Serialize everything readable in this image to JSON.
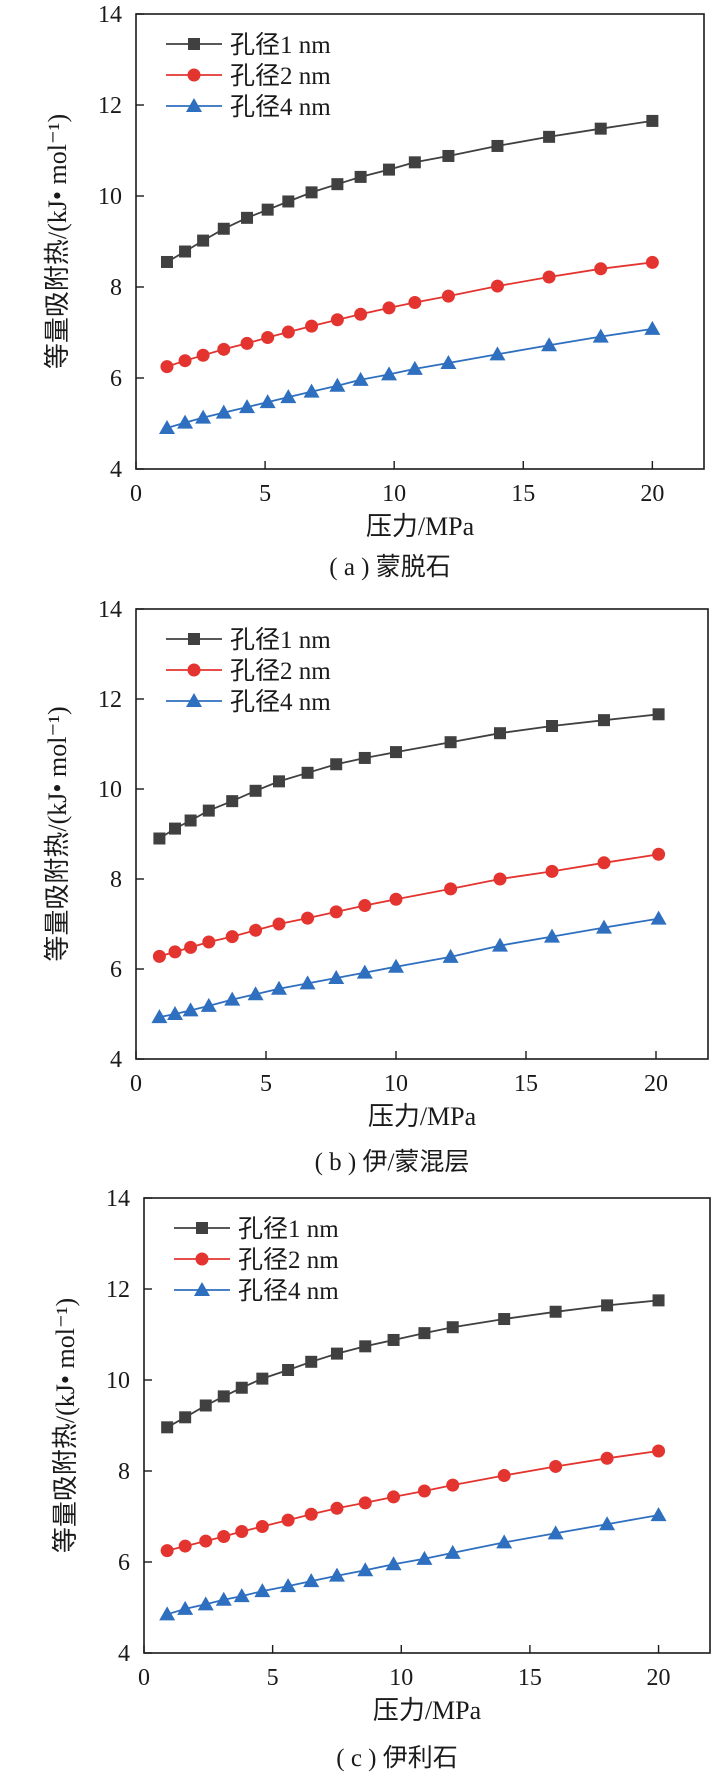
{
  "colors": {
    "series": [
      "#404040",
      "#e3342f",
      "#2f6fc0"
    ],
    "axis": "#1a1a1a",
    "background": "#ffffff"
  },
  "chart_data": [
    {
      "type": "line",
      "caption": "( a ) 蒙脱石",
      "xlabel": "压力/MPa",
      "ylabel": "等量吸附热/(kJ• mol⁻¹)",
      "xlim": [
        0,
        22
      ],
      "ylim": [
        4,
        14
      ],
      "xticks": [
        "0",
        "5",
        "10",
        "15",
        "20"
      ],
      "yticks": [
        "4",
        "6",
        "8",
        "10",
        "12",
        "14"
      ],
      "legend_position": "top-left",
      "markers": [
        "square",
        "circle",
        "triangle"
      ],
      "series": [
        {
          "name": "孔径1 nm",
          "x": [
            1.2,
            1.9,
            2.6,
            3.4,
            4.3,
            5.1,
            5.9,
            6.8,
            7.8,
            8.7,
            9.8,
            10.8,
            12.1,
            14.0,
            16.0,
            18.0,
            20.0
          ],
          "y": [
            8.55,
            8.78,
            9.02,
            9.28,
            9.52,
            9.7,
            9.88,
            10.08,
            10.26,
            10.42,
            10.58,
            10.74,
            10.88,
            11.1,
            11.3,
            11.48,
            11.65
          ]
        },
        {
          "name": "孔径2 nm",
          "x": [
            1.2,
            1.9,
            2.6,
            3.4,
            4.3,
            5.1,
            5.9,
            6.8,
            7.8,
            8.7,
            9.8,
            10.8,
            12.1,
            14.0,
            16.0,
            18.0,
            20.0
          ],
          "y": [
            6.25,
            6.38,
            6.5,
            6.63,
            6.76,
            6.89,
            7.01,
            7.14,
            7.28,
            7.4,
            7.54,
            7.66,
            7.8,
            8.02,
            8.22,
            8.4,
            8.54
          ]
        },
        {
          "name": "孔径4 nm",
          "x": [
            1.2,
            1.9,
            2.6,
            3.4,
            4.3,
            5.1,
            5.9,
            6.8,
            7.8,
            8.7,
            9.8,
            10.8,
            12.1,
            14.0,
            16.0,
            18.0,
            20.0
          ],
          "y": [
            4.9,
            5.02,
            5.13,
            5.24,
            5.36,
            5.47,
            5.58,
            5.7,
            5.83,
            5.96,
            6.08,
            6.2,
            6.33,
            6.52,
            6.72,
            6.91,
            7.08
          ]
        }
      ]
    },
    {
      "type": "line",
      "caption": "( b ) 伊/蒙混层",
      "xlabel": "压力/MPa",
      "ylabel": "等量吸附热/(kJ• mol⁻¹)",
      "xlim": [
        0,
        22
      ],
      "ylim": [
        4,
        14
      ],
      "xticks": [
        "0",
        "5",
        "10",
        "15",
        "20"
      ],
      "yticks": [
        "4",
        "6",
        "8",
        "10",
        "12",
        "14"
      ],
      "legend_position": "top-left",
      "markers": [
        "square",
        "circle",
        "triangle"
      ],
      "series": [
        {
          "name": "孔径1 nm",
          "x": [
            0.9,
            1.5,
            2.1,
            2.8,
            3.7,
            4.6,
            5.5,
            6.6,
            7.7,
            8.8,
            10.0,
            12.1,
            14.0,
            16.0,
            18.0,
            20.1
          ],
          "y": [
            8.9,
            9.12,
            9.3,
            9.52,
            9.73,
            9.96,
            10.17,
            10.36,
            10.55,
            10.69,
            10.82,
            11.04,
            11.24,
            11.4,
            11.53,
            11.66
          ]
        },
        {
          "name": "孔径2 nm",
          "x": [
            0.9,
            1.5,
            2.1,
            2.8,
            3.7,
            4.6,
            5.5,
            6.6,
            7.7,
            8.8,
            10.0,
            12.1,
            14.0,
            16.0,
            18.0,
            20.1
          ],
          "y": [
            6.28,
            6.38,
            6.48,
            6.6,
            6.72,
            6.86,
            7.0,
            7.13,
            7.27,
            7.41,
            7.55,
            7.78,
            8.0,
            8.17,
            8.36,
            8.55
          ]
        },
        {
          "name": "孔径4 nm",
          "x": [
            0.9,
            1.5,
            2.1,
            2.8,
            3.7,
            4.6,
            5.5,
            6.6,
            7.7,
            8.8,
            10.0,
            12.1,
            14.0,
            16.0,
            18.0,
            20.1
          ],
          "y": [
            4.93,
            5.0,
            5.08,
            5.18,
            5.32,
            5.44,
            5.56,
            5.68,
            5.8,
            5.92,
            6.05,
            6.27,
            6.52,
            6.72,
            6.92,
            7.12
          ]
        }
      ]
    },
    {
      "type": "line",
      "caption": "( c ) 伊利石",
      "xlabel": "压力/MPa",
      "ylabel": "等量吸附热/(kJ• mol⁻¹)",
      "xlim": [
        0,
        22
      ],
      "ylim": [
        4,
        14
      ],
      "xticks": [
        "0",
        "5",
        "10",
        "15",
        "20"
      ],
      "yticks": [
        "4",
        "6",
        "8",
        "10",
        "12",
        "14"
      ],
      "legend_position": "top-left",
      "markers": [
        "square",
        "circle",
        "triangle"
      ],
      "series": [
        {
          "name": "孔径1 nm",
          "x": [
            0.9,
            1.6,
            2.4,
            3.1,
            3.8,
            4.6,
            5.6,
            6.5,
            7.5,
            8.6,
            9.7,
            10.9,
            12.0,
            14.0,
            16.0,
            18.0,
            20.0
          ],
          "y": [
            8.96,
            9.18,
            9.44,
            9.64,
            9.83,
            10.03,
            10.22,
            10.4,
            10.58,
            10.74,
            10.88,
            11.03,
            11.16,
            11.34,
            11.5,
            11.64,
            11.75
          ]
        },
        {
          "name": "孔径2 nm",
          "x": [
            0.9,
            1.6,
            2.4,
            3.1,
            3.8,
            4.6,
            5.6,
            6.5,
            7.5,
            8.6,
            9.7,
            10.9,
            12.0,
            14.0,
            16.0,
            18.0,
            20.0
          ],
          "y": [
            6.25,
            6.35,
            6.46,
            6.56,
            6.67,
            6.78,
            6.92,
            7.05,
            7.18,
            7.3,
            7.43,
            7.56,
            7.69,
            7.9,
            8.1,
            8.28,
            8.44
          ]
        },
        {
          "name": "孔径4 nm",
          "x": [
            0.9,
            1.6,
            2.4,
            3.1,
            3.8,
            4.6,
            5.6,
            6.5,
            7.5,
            8.6,
            9.7,
            10.9,
            12.0,
            14.0,
            16.0,
            18.0,
            20.0
          ],
          "y": [
            4.85,
            4.97,
            5.07,
            5.17,
            5.25,
            5.36,
            5.47,
            5.58,
            5.7,
            5.82,
            5.95,
            6.07,
            6.2,
            6.43,
            6.63,
            6.83,
            7.03
          ]
        }
      ]
    }
  ]
}
